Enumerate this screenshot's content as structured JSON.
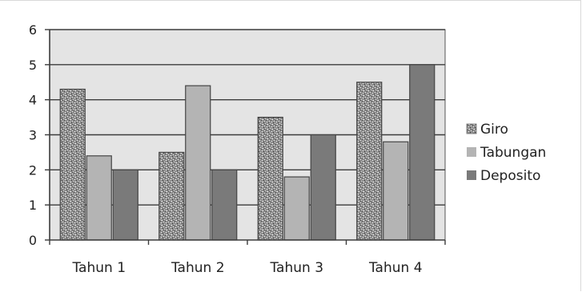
{
  "chart_data": {
    "type": "bar",
    "title": "",
    "xlabel": "",
    "ylabel": "",
    "categories": [
      "Tahun 1",
      "Tahun 2",
      "Tahun 3",
      "Tahun 4"
    ],
    "series": [
      {
        "name": "Giro",
        "values": [
          4.3,
          2.5,
          3.5,
          4.5
        ],
        "color": "#9a9a9a",
        "pattern": "speckled"
      },
      {
        "name": "Tabungan",
        "values": [
          2.4,
          4.4,
          1.8,
          2.8
        ],
        "color": "#b4b4b4",
        "pattern": "solid"
      },
      {
        "name": "Deposito",
        "values": [
          2.0,
          2.0,
          3.0,
          5.0
        ],
        "color": "#7a7a7a",
        "pattern": "solid"
      }
    ],
    "ylim": [
      0,
      6
    ],
    "yticks": [
      "0",
      "1",
      "2",
      "3",
      "4",
      "5",
      "6"
    ],
    "grid": true,
    "legend_position": "right",
    "plot_background": "#e4e4e4"
  }
}
